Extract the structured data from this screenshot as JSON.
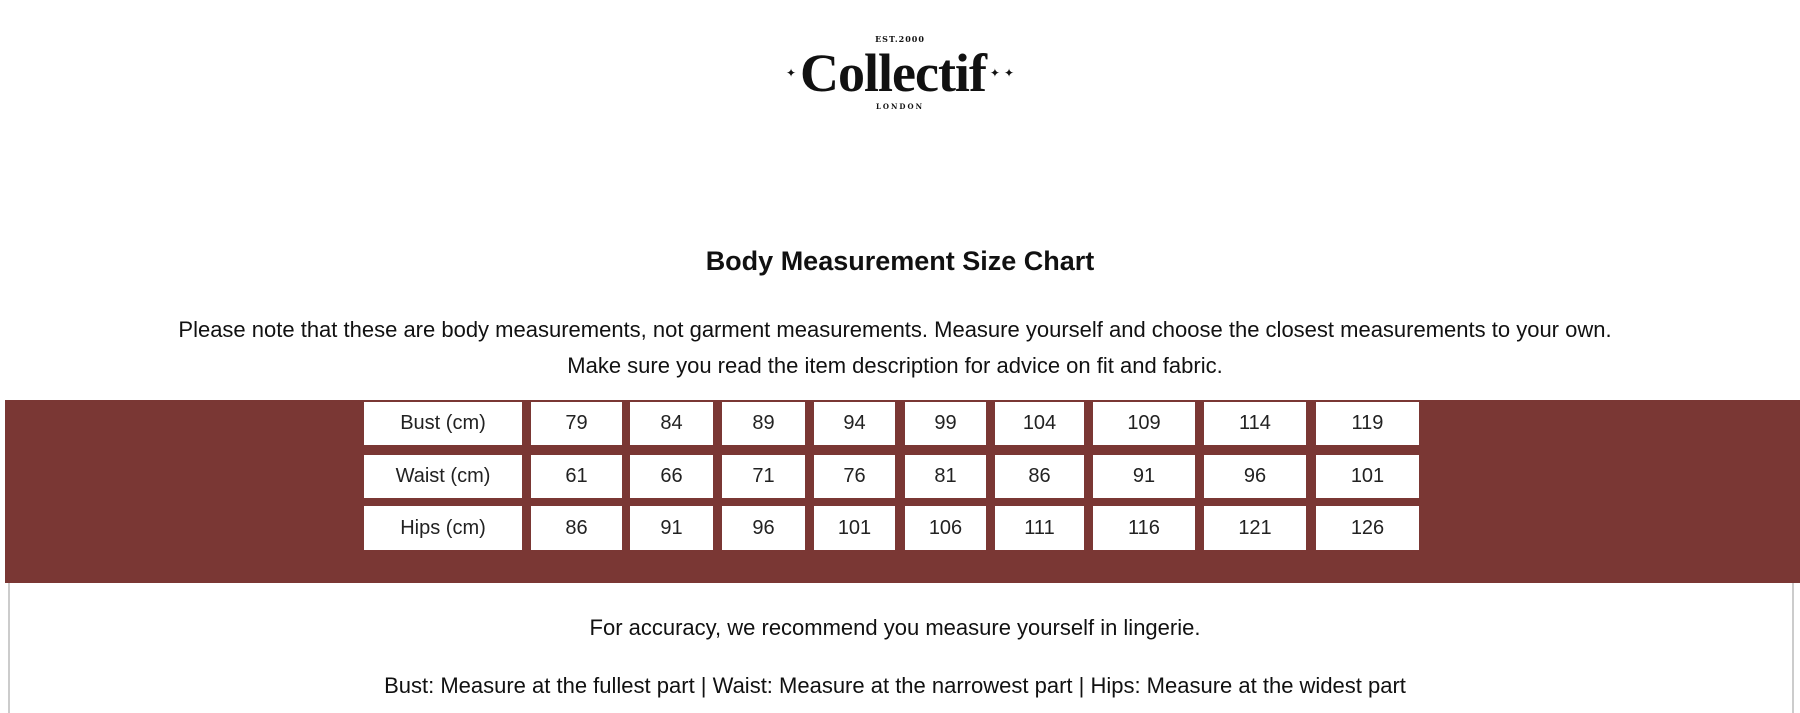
{
  "logo": {
    "text": "Collectif",
    "established": "EST.2000",
    "city": "LONDON"
  },
  "title": "Body Measurement Size Chart",
  "note_lines": [
    "Please note that these are body measurements, not garment measurements. Measure yourself and choose the closest measurements to your own.",
    "Make sure you read the item description for advice on fit and fabric."
  ],
  "colors": {
    "band": "#7a3734",
    "cell": "#ffffff"
  },
  "size_table": {
    "rows": [
      {
        "label": "Bust (cm)",
        "values": [
          "79",
          "84",
          "89",
          "94",
          "99",
          "104",
          "109",
          "114",
          "119"
        ]
      },
      {
        "label": "Waist (cm)",
        "values": [
          "61",
          "66",
          "71",
          "76",
          "81",
          "86",
          "91",
          "96",
          "101"
        ]
      },
      {
        "label": "Hips (cm)",
        "values": [
          "86",
          "91",
          "96",
          "101",
          "106",
          "111",
          "116",
          "121",
          "126"
        ]
      }
    ]
  },
  "footer": {
    "accuracy": "For accuracy, we recommend you measure yourself in lingerie.",
    "instructions": "Bust: Measure at the fullest part | Waist: Measure at the narrowest part | Hips: Measure at the widest part"
  }
}
